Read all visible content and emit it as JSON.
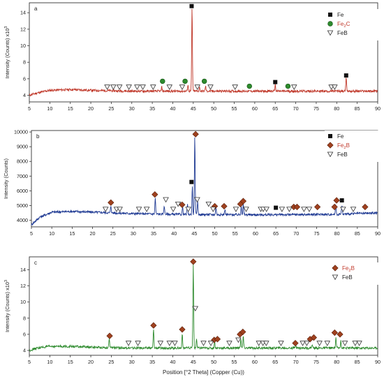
{
  "chart_data": [
    {
      "type": "line",
      "panel_label": "a",
      "ylabel_main": "Intensity (Counts) x10",
      "ylabel_exp": "3",
      "x_ticks": [
        5,
        10,
        15,
        20,
        25,
        30,
        35,
        40,
        45,
        50,
        55,
        60,
        65,
        70,
        75,
        80,
        85,
        90
      ],
      "y_ticks": [
        4,
        6,
        8,
        10,
        12,
        14
      ],
      "xlim": [
        5,
        90
      ],
      "ylim": [
        3.2,
        15.2
      ],
      "line_color": "#c0392b",
      "baseline": [
        [
          5,
          4.0
        ],
        [
          7,
          4.3
        ],
        [
          10,
          4.6
        ],
        [
          15,
          4.7
        ],
        [
          20,
          4.6
        ],
        [
          30,
          4.5
        ],
        [
          40,
          4.5
        ],
        [
          50,
          4.5
        ],
        [
          60,
          4.5
        ],
        [
          70,
          4.5
        ],
        [
          80,
          4.5
        ],
        [
          90,
          4.5
        ]
      ],
      "peaks": [
        [
          37.3,
          0.5
        ],
        [
          43.7,
          0.8
        ],
        [
          44.7,
          10.2
        ],
        [
          46.5,
          0.5
        ],
        [
          48.0,
          0.6
        ],
        [
          65.0,
          0.8
        ],
        [
          82.3,
          1.8
        ]
      ],
      "legend": [
        {
          "label": "Fe",
          "sub": "",
          "marker": "square"
        },
        {
          "label": "Fe",
          "sub": "2",
          "suffix": "C",
          "marker": "circle"
        },
        {
          "label": "FeB",
          "sub": "",
          "marker": "triangle"
        }
      ],
      "markers": [
        {
          "marker": "square",
          "points": [
            [
              44.6,
              14.8
            ],
            [
              65.0,
              5.6
            ],
            [
              82.3,
              6.4
            ]
          ]
        },
        {
          "marker": "circle",
          "points": [
            [
              37.5,
              5.7
            ],
            [
              43.0,
              5.7
            ],
            [
              47.7,
              5.7
            ],
            [
              58.7,
              5.1
            ],
            [
              68.1,
              5.1
            ]
          ]
        },
        {
          "marker": "triangle",
          "points": [
            [
              24.0,
              5.0
            ],
            [
              25.5,
              5.0
            ],
            [
              27.0,
              5.0
            ],
            [
              29.3,
              5.0
            ],
            [
              31.3,
              5.0
            ],
            [
              32.7,
              5.0
            ],
            [
              35.2,
              5.0
            ],
            [
              39.2,
              5.0
            ],
            [
              42.3,
              5.0
            ],
            [
              46.0,
              5.0
            ],
            [
              49.2,
              5.0
            ],
            [
              55.2,
              5.0
            ],
            [
              69.6,
              5.0
            ],
            [
              78.7,
              5.0
            ],
            [
              79.5,
              5.0
            ]
          ]
        }
      ]
    },
    {
      "type": "line",
      "panel_label": "b",
      "ylabel_main": "Intensity (Counts)",
      "ylabel_exp": "",
      "x_ticks": [
        5,
        10,
        15,
        20,
        25,
        30,
        35,
        40,
        45,
        50,
        55,
        60,
        65,
        70,
        75,
        80,
        85,
        90
      ],
      "y_ticks": [
        4000,
        5000,
        6000,
        7000,
        8000,
        9000,
        10000
      ],
      "xlim": [
        5,
        90
      ],
      "ylim": [
        3550,
        10100
      ],
      "line_color": "#1f3a93",
      "baseline": [
        [
          5,
          3700
        ],
        [
          7,
          4200
        ],
        [
          10,
          4550
        ],
        [
          15,
          4600
        ],
        [
          20,
          4550
        ],
        [
          30,
          4450
        ],
        [
          40,
          4400
        ],
        [
          50,
          4380
        ],
        [
          60,
          4370
        ],
        [
          70,
          4380
        ],
        [
          80,
          4400
        ],
        [
          90,
          4500
        ]
      ],
      "peaks": [
        [
          24.5,
          500
        ],
        [
          35.4,
          1100
        ],
        [
          37.6,
          600
        ],
        [
          42.1,
          500
        ],
        [
          43.3,
          700
        ],
        [
          44.5,
          1900
        ],
        [
          45.1,
          5300
        ],
        [
          45.8,
          900
        ],
        [
          50.3,
          500
        ],
        [
          52.5,
          400
        ],
        [
          56.5,
          600
        ],
        [
          57.0,
          700
        ],
        [
          79.7,
          700
        ],
        [
          81.2,
          600
        ]
      ],
      "legend": [
        {
          "label": "Fe",
          "sub": "",
          "marker": "square"
        },
        {
          "label": "Fe",
          "sub": "2",
          "suffix": "B",
          "marker": "diamond"
        },
        {
          "label": "FeB",
          "sub": "",
          "marker": "triangle"
        }
      ],
      "markers": [
        {
          "marker": "square",
          "points": [
            [
              44.3,
              6600
            ],
            [
              65.0,
              4850
            ],
            [
              81.2,
              5350
            ]
          ]
        },
        {
          "marker": "diamond",
          "points": [
            [
              24.5,
              5200
            ],
            [
              35.3,
              5750
            ],
            [
              42.0,
              5050
            ],
            [
              45.3,
              9850
            ],
            [
              50.0,
              4950
            ],
            [
              52.3,
              4950
            ],
            [
              56.3,
              5100
            ],
            [
              57.0,
              5300
            ],
            [
              69.4,
              4900
            ],
            [
              70.2,
              4900
            ],
            [
              75.2,
              4900
            ],
            [
              79.4,
              4900
            ],
            [
              79.9,
              5350
            ],
            [
              86.9,
              4900
            ]
          ]
        },
        {
          "marker": "triangle",
          "points": [
            [
              23.2,
              4750
            ],
            [
              25.9,
              4750
            ],
            [
              26.7,
              4750
            ],
            [
              31.4,
              4750
            ],
            [
              33.3,
              4750
            ],
            [
              38.0,
              5400
            ],
            [
              39.8,
              4750
            ],
            [
              41.0,
              5100
            ],
            [
              43.5,
              4750
            ],
            [
              45.7,
              5400
            ],
            [
              48.5,
              5100
            ],
            [
              49.6,
              4750
            ],
            [
              55.2,
              4750
            ],
            [
              57.7,
              4750
            ],
            [
              61.3,
              4750
            ],
            [
              61.9,
              4750
            ],
            [
              62.7,
              4750
            ],
            [
              66.5,
              4750
            ],
            [
              68.3,
              4750
            ],
            [
              71.9,
              4750
            ],
            [
              73.2,
              4750
            ],
            [
              81.5,
              4750
            ],
            [
              84.0,
              4750
            ]
          ]
        }
      ]
    },
    {
      "type": "line",
      "panel_label": "c",
      "ylabel_main": "Intensity (Counts) x10",
      "ylabel_exp": "3",
      "x_ticks": [
        5,
        10,
        15,
        20,
        25,
        30,
        35,
        40,
        45,
        50,
        55,
        60,
        65,
        70,
        75,
        80,
        85,
        90
      ],
      "y_ticks": [
        4,
        6,
        8,
        10,
        12,
        14
      ],
      "xlim": [
        5,
        90
      ],
      "ylim": [
        3.4,
        15.6
      ],
      "xlabel": "Position [°2 Theta] (Copper (Cu))",
      "line_color": "#2e8b2e",
      "baseline": [
        [
          5,
          4.0
        ],
        [
          7,
          4.3
        ],
        [
          10,
          4.5
        ],
        [
          15,
          4.5
        ],
        [
          20,
          4.4
        ],
        [
          30,
          4.3
        ],
        [
          40,
          4.3
        ],
        [
          50,
          4.3
        ],
        [
          60,
          4.3
        ],
        [
          70,
          4.3
        ],
        [
          80,
          4.3
        ],
        [
          90,
          4.3
        ]
      ],
      "peaks": [
        [
          24.5,
          1.0
        ],
        [
          35.3,
          2.3
        ],
        [
          42.3,
          1.8
        ],
        [
          45.0,
          10.3
        ],
        [
          45.8,
          1.2
        ],
        [
          50.2,
          0.8
        ],
        [
          56.6,
          1.2
        ],
        [
          57.2,
          1.5
        ],
        [
          70.0,
          0.5
        ],
        [
          74.0,
          0.5
        ],
        [
          79.8,
          1.3
        ],
        [
          81.0,
          1.0
        ]
      ],
      "legend": [
        {
          "label": "Fe",
          "sub": "2",
          "suffix": "B",
          "marker": "diamond"
        },
        {
          "label": "FeB",
          "sub": "",
          "marker": "triangle"
        }
      ],
      "markers": [
        {
          "marker": "diamond",
          "points": [
            [
              24.6,
              5.8
            ],
            [
              35.3,
              7.1
            ],
            [
              42.3,
              6.6
            ],
            [
              45.0,
              15.0
            ],
            [
              50.1,
              5.3
            ],
            [
              50.9,
              5.4
            ],
            [
              56.4,
              6.0
            ],
            [
              57.1,
              6.3
            ],
            [
              69.9,
              4.9
            ],
            [
              73.5,
              5.4
            ],
            [
              74.4,
              5.6
            ],
            [
              79.5,
              6.2
            ],
            [
              80.8,
              6.0
            ]
          ]
        },
        {
          "marker": "triangle",
          "points": [
            [
              29.2,
              4.9
            ],
            [
              31.5,
              4.9
            ],
            [
              37.0,
              4.9
            ],
            [
              39.2,
              4.9
            ],
            [
              40.5,
              4.9
            ],
            [
              45.5,
              9.2
            ],
            [
              47.5,
              4.9
            ],
            [
              49.3,
              4.9
            ],
            [
              53.8,
              4.9
            ],
            [
              56.0,
              5.3
            ],
            [
              61.0,
              4.9
            ],
            [
              62.0,
              4.9
            ],
            [
              62.8,
              4.9
            ],
            [
              66.4,
              4.9
            ],
            [
              71.7,
              4.9
            ],
            [
              72.7,
              4.9
            ],
            [
              75.8,
              4.9
            ],
            [
              77.7,
              4.9
            ],
            [
              82.0,
              4.9
            ],
            [
              84.5,
              4.9
            ],
            [
              85.5,
              4.9
            ]
          ]
        }
      ]
    }
  ]
}
